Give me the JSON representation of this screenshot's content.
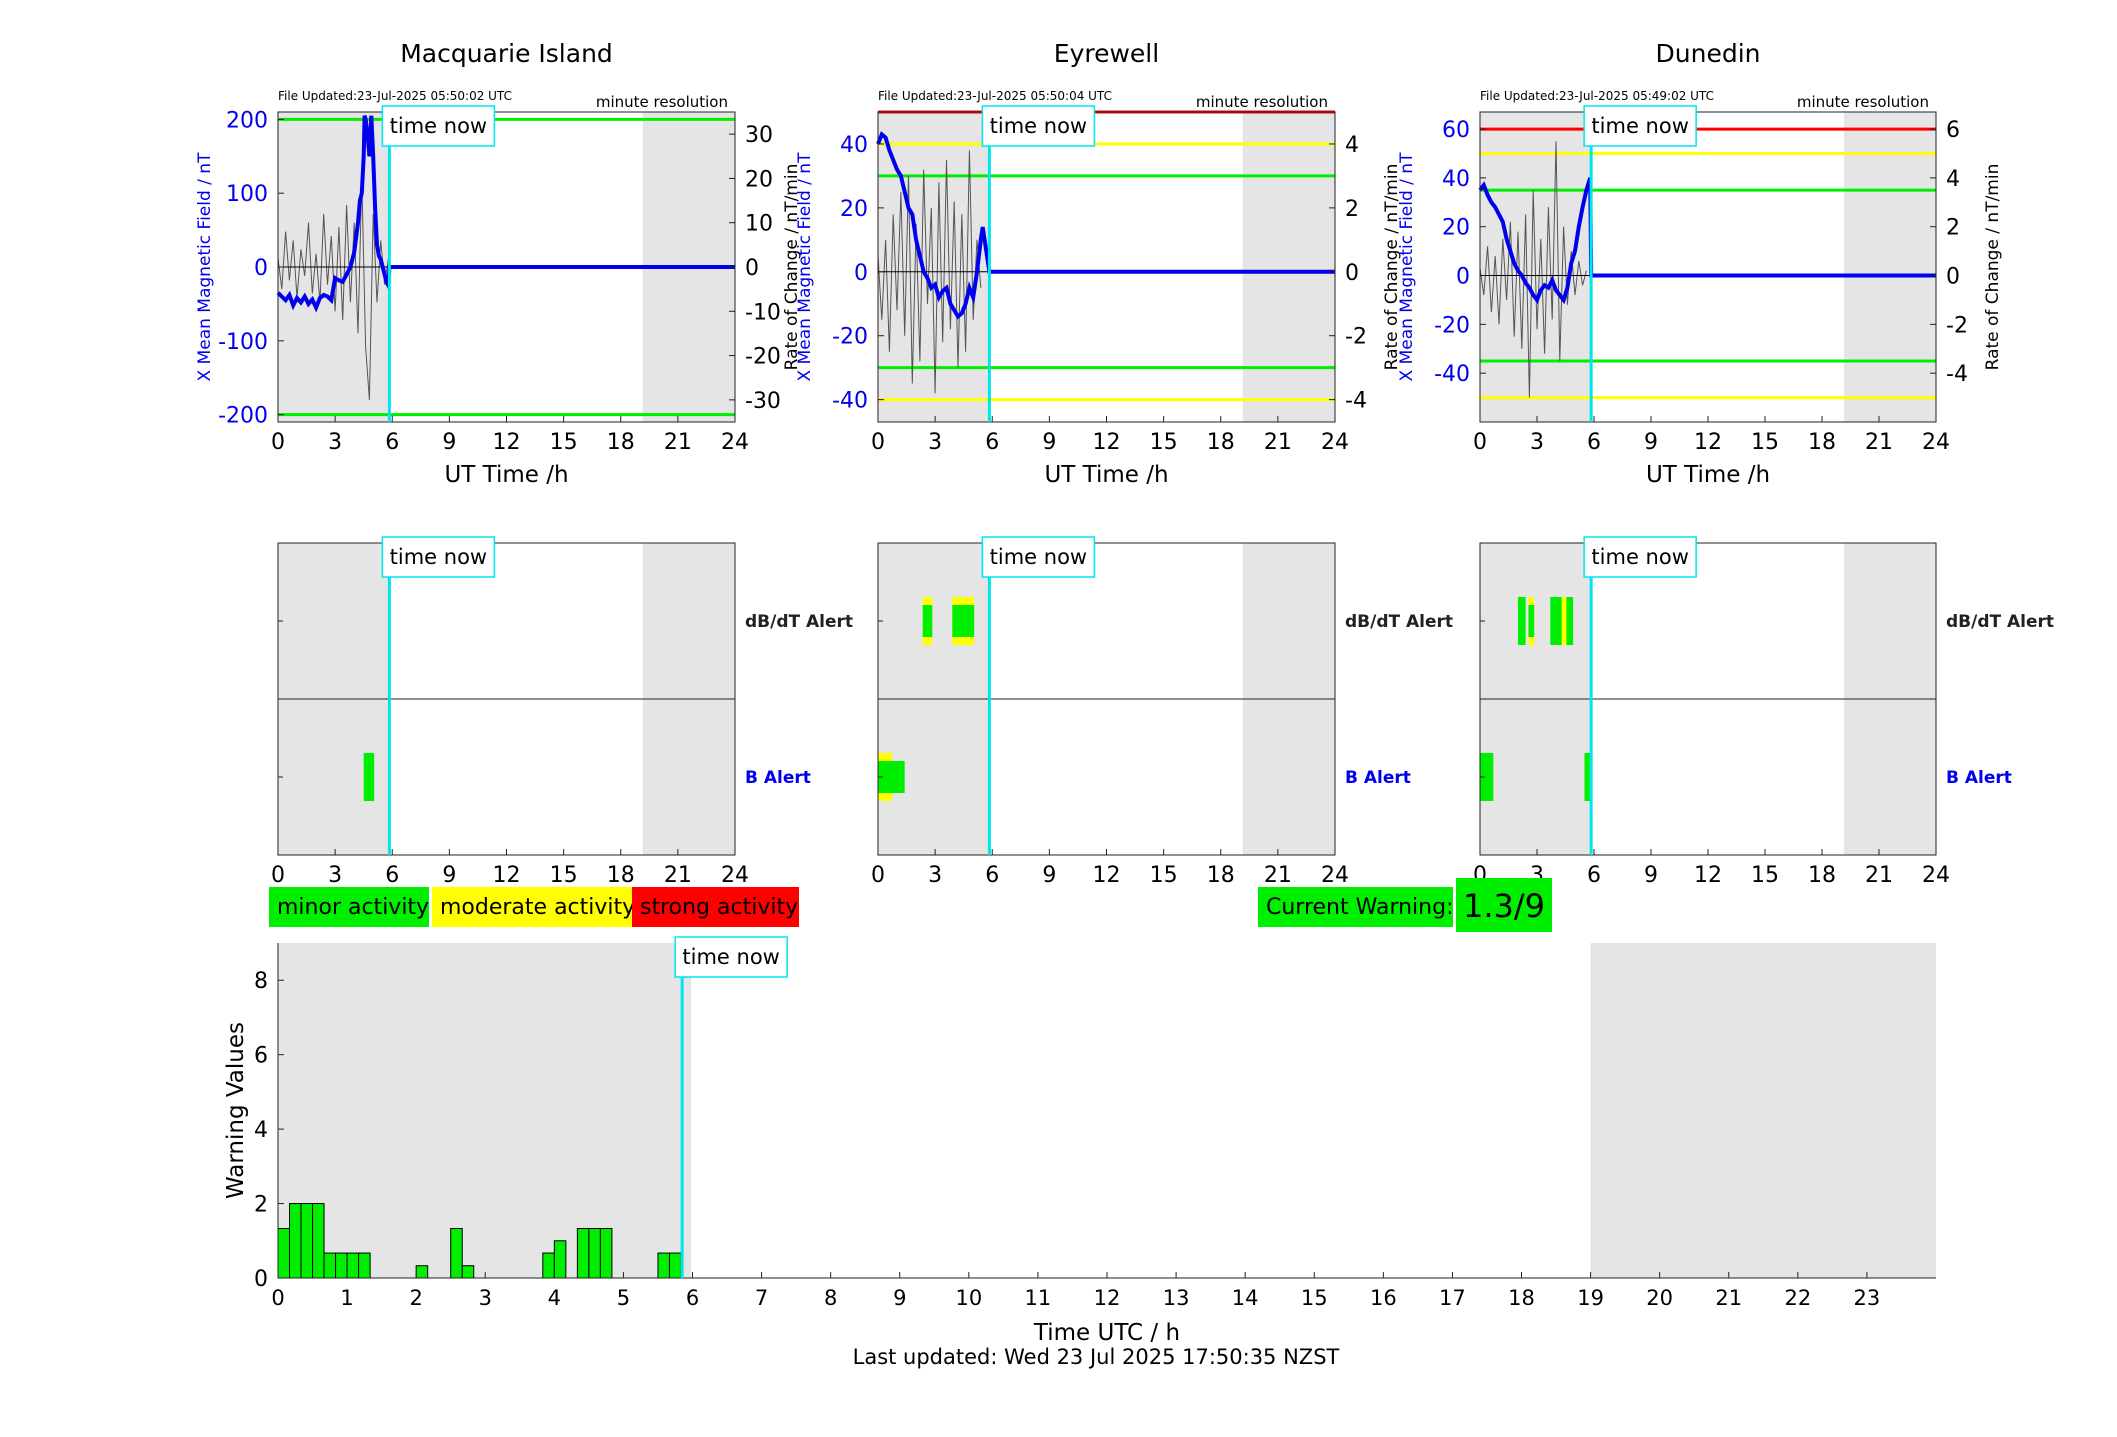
{
  "footer": "Last updated: Wed 23 Jul 2025 17:50:35 NZST",
  "legend": {
    "minor": "minor activity",
    "moderate": "moderate activity",
    "strong": "strong activity",
    "current_warning_label": "Current Warning:",
    "current_warning_value": "1.3/9"
  },
  "colors": {
    "minor": "#00ee00",
    "moderate": "#ffff00",
    "strong": "#ff0000",
    "night_shade": "#e5e5e5",
    "time_now_line": "#00e5ee",
    "field_line": "#0000ee",
    "rate_line": "#555555",
    "teal_box": "#00e5ee"
  },
  "chart_data": [
    {
      "type": "line",
      "station": "Macquarie Island",
      "file_updated": "File Updated:23-Jul-2025 05:50:02 UTC",
      "resolution": "minute resolution",
      "time_now_label": "time now",
      "time_now": 5.85,
      "xlabel": "UT Time /h",
      "ylabel_left": "X Mean Magnetic Field / nT",
      "ylabel_right": "Rate of Change / nT/min",
      "xlim": [
        0,
        24
      ],
      "xticks": [
        0,
        3,
        6,
        9,
        12,
        15,
        18,
        21,
        24
      ],
      "ylim_left": [
        -210,
        210
      ],
      "yticks_left": [
        -200,
        -100,
        0,
        100,
        200
      ],
      "ylim_right": [
        -35,
        35
      ],
      "yticks_right": [
        -30,
        -20,
        -10,
        0,
        10,
        20,
        30
      ],
      "night": [
        [
          0,
          5.85
        ],
        [
          19.15,
          24
        ]
      ],
      "thresholds": [
        {
          "value": 200,
          "level": "minor"
        },
        {
          "value": -200,
          "level": "minor"
        }
      ],
      "field_series": {
        "x": [
          0,
          0.2,
          0.4,
          0.6,
          0.8,
          1.0,
          1.2,
          1.4,
          1.6,
          1.8,
          2.0,
          2.2,
          2.4,
          2.6,
          2.8,
          3.0,
          3.2,
          3.4,
          3.6,
          3.8,
          4.0,
          4.1,
          4.2,
          4.3,
          4.4,
          4.5,
          4.55,
          4.6,
          4.7,
          4.8,
          4.9,
          5.0,
          5.1,
          5.2,
          5.3,
          5.4,
          5.5,
          5.6,
          5.7,
          5.8,
          5.85,
          24
        ],
        "y": [
          -35,
          -40,
          -45,
          -38,
          -52,
          -42,
          -48,
          -40,
          -50,
          -44,
          -55,
          -42,
          -38,
          -40,
          -45,
          -15,
          -18,
          -20,
          -10,
          0,
          20,
          40,
          60,
          90,
          100,
          150,
          205,
          200,
          180,
          150,
          205,
          150,
          80,
          30,
          15,
          10,
          0,
          -10,
          -20,
          -25,
          0,
          0
        ]
      },
      "rate_series": {
        "x": [
          0,
          0.2,
          0.4,
          0.6,
          0.8,
          1.0,
          1.2,
          1.4,
          1.6,
          1.8,
          2.0,
          2.2,
          2.4,
          2.6,
          2.8,
          3.0,
          3.2,
          3.4,
          3.6,
          3.8,
          4.0,
          4.2,
          4.4,
          4.6,
          4.8,
          5.0,
          5.2,
          5.4,
          5.6,
          5.8
        ],
        "y": [
          2,
          -5,
          8,
          -3,
          6,
          -7,
          4,
          -2,
          10,
          -6,
          3,
          -8,
          12,
          -4,
          7,
          -10,
          9,
          -12,
          14,
          -8,
          10,
          -15,
          20,
          -18,
          -30,
          12,
          -8,
          6,
          -4,
          2
        ]
      }
    },
    {
      "type": "line",
      "station": "Eyrewell",
      "file_updated": "File Updated:23-Jul-2025 05:50:04 UTC",
      "resolution": "minute resolution",
      "time_now_label": "time now",
      "time_now": 5.85,
      "xlabel": "UT Time /h",
      "ylabel_left": "X Mean Magnetic Field / nT",
      "ylabel_right": "Rate of Change / nT/min",
      "xlim": [
        0,
        24
      ],
      "xticks": [
        0,
        3,
        6,
        9,
        12,
        15,
        18,
        21,
        24
      ],
      "ylim_left": [
        -47,
        50
      ],
      "yticks_left": [
        -40,
        -20,
        0,
        20,
        40
      ],
      "ylim_right": [
        -4.7,
        5.0
      ],
      "yticks_right": [
        -4,
        -2,
        0,
        2,
        4
      ],
      "night": [
        [
          0,
          5.85
        ],
        [
          19.15,
          24
        ]
      ],
      "thresholds": [
        {
          "value": 50,
          "level": "strong"
        },
        {
          "value": 40,
          "level": "moderate"
        },
        {
          "value": 30,
          "level": "minor"
        },
        {
          "value": -30,
          "level": "minor"
        },
        {
          "value": -40,
          "level": "moderate"
        }
      ],
      "field_series": {
        "x": [
          0,
          0.2,
          0.4,
          0.6,
          0.8,
          1.0,
          1.2,
          1.4,
          1.6,
          1.8,
          2.0,
          2.2,
          2.4,
          2.6,
          2.8,
          3.0,
          3.2,
          3.4,
          3.6,
          3.8,
          4.0,
          4.2,
          4.4,
          4.6,
          4.8,
          5.0,
          5.2,
          5.4,
          5.5,
          5.85,
          24
        ],
        "y": [
          40,
          43,
          42,
          38,
          35,
          32,
          30,
          25,
          20,
          18,
          10,
          5,
          0,
          -2,
          -5,
          -4,
          -8,
          -6,
          -5,
          -10,
          -12,
          -14,
          -13,
          -10,
          -5,
          -8,
          0,
          10,
          14,
          0,
          0
        ]
      },
      "rate_series": {
        "x": [
          0,
          0.2,
          0.4,
          0.6,
          0.8,
          1.0,
          1.2,
          1.4,
          1.6,
          1.8,
          2.0,
          2.2,
          2.4,
          2.6,
          2.8,
          3.0,
          3.2,
          3.4,
          3.6,
          3.8,
          4.0,
          4.2,
          4.4,
          4.6,
          4.8,
          5.0,
          5.2,
          5.4
        ],
        "y": [
          0.5,
          -1.5,
          1.0,
          -2.5,
          1.8,
          -1.2,
          2.5,
          -2.0,
          3.0,
          -3.5,
          1.5,
          -2.8,
          3.2,
          -1.0,
          2.0,
          -3.8,
          2.8,
          -2.2,
          3.5,
          -1.8,
          2.2,
          -3.0,
          1.8,
          -2.5,
          3.8,
          -1.5,
          1.0,
          -0.5
        ]
      }
    },
    {
      "type": "line",
      "station": "Dunedin",
      "file_updated": "File Updated:23-Jul-2025 05:49:02 UTC",
      "resolution": "minute resolution",
      "time_now_label": "time now",
      "time_now": 5.85,
      "xlabel": "UT Time /h",
      "ylabel_left": "X Mean Magnetic Field / nT",
      "ylabel_right": "Rate of Change / nT/min",
      "xlim": [
        0,
        24
      ],
      "xticks": [
        0,
        3,
        6,
        9,
        12,
        15,
        18,
        21,
        24
      ],
      "ylim_left": [
        -60,
        67
      ],
      "yticks_left": [
        -40,
        -20,
        0,
        20,
        40,
        60
      ],
      "ylim_right": [
        -6.0,
        6.7
      ],
      "yticks_right": [
        -4,
        -2,
        0,
        2,
        4,
        6
      ],
      "night": [
        [
          0,
          5.85
        ],
        [
          19.15,
          24
        ]
      ],
      "thresholds": [
        {
          "value": 60,
          "level": "strong"
        },
        {
          "value": 50,
          "level": "moderate"
        },
        {
          "value": 35,
          "level": "minor"
        },
        {
          "value": -35,
          "level": "minor"
        },
        {
          "value": -50,
          "level": "moderate"
        }
      ],
      "field_series": {
        "x": [
          0,
          0.2,
          0.4,
          0.6,
          0.8,
          1.0,
          1.2,
          1.4,
          1.6,
          1.8,
          2.0,
          2.2,
          2.4,
          2.6,
          2.8,
          3.0,
          3.2,
          3.4,
          3.6,
          3.8,
          4.0,
          4.2,
          4.4,
          4.6,
          4.8,
          5.0,
          5.2,
          5.4,
          5.6,
          5.8,
          5.85,
          24
        ],
        "y": [
          35,
          37,
          33,
          30,
          28,
          25,
          22,
          15,
          10,
          5,
          2,
          0,
          -3,
          -5,
          -8,
          -10,
          -6,
          -4,
          -5,
          -2,
          -6,
          -8,
          -10,
          -5,
          5,
          10,
          20,
          28,
          35,
          40,
          0,
          0
        ]
      },
      "rate_series": {
        "x": [
          0,
          0.2,
          0.4,
          0.6,
          0.8,
          1.0,
          1.2,
          1.4,
          1.6,
          1.8,
          2.0,
          2.2,
          2.4,
          2.6,
          2.8,
          3.0,
          3.2,
          3.4,
          3.6,
          3.8,
          4.0,
          4.2,
          4.4,
          4.6,
          4.8,
          5.0,
          5.2,
          5.4,
          5.6
        ],
        "y": [
          0.3,
          -0.8,
          1.2,
          -1.5,
          0.8,
          -2.0,
          1.5,
          -1.0,
          2.2,
          -2.5,
          1.8,
          -3.0,
          2.5,
          -5.0,
          3.5,
          -2.2,
          1.5,
          -3.2,
          2.8,
          -1.8,
          5.5,
          -3.5,
          2.0,
          -1.2,
          1.0,
          -0.8,
          0.6,
          -0.4,
          0.2
        ]
      }
    },
    {
      "type": "event",
      "station": "Macquarie Island",
      "time_now_label": "time now",
      "time_now": 5.85,
      "xlim": [
        0,
        24
      ],
      "xticks": [
        0,
        3,
        6,
        9,
        12,
        15,
        18,
        21,
        24
      ],
      "rows": [
        {
          "label": "dB/dT Alert",
          "label_color": "#222222",
          "events": []
        },
        {
          "label": "B Alert",
          "label_color": "#0000ee",
          "events": [
            {
              "start": 4.5,
              "end": 5.05,
              "level": "minor"
            }
          ]
        }
      ],
      "night": [
        [
          0,
          5.85
        ],
        [
          19.15,
          24
        ]
      ]
    },
    {
      "type": "event",
      "station": "Eyrewell",
      "time_now_label": "time now",
      "time_now": 5.85,
      "xlim": [
        0,
        24
      ],
      "xticks": [
        0,
        3,
        6,
        9,
        12,
        15,
        18,
        21,
        24
      ],
      "rows": [
        {
          "label": "dB/dT Alert",
          "label_color": "#222222",
          "events": [
            {
              "start": 2.35,
              "end": 2.85,
              "level": "moderate"
            },
            {
              "start": 2.35,
              "end": 2.85,
              "level": "minor",
              "inner": true
            },
            {
              "start": 3.9,
              "end": 5.05,
              "level": "moderate"
            },
            {
              "start": 3.9,
              "end": 5.05,
              "level": "minor",
              "inner": true
            }
          ]
        },
        {
          "label": "B Alert",
          "label_color": "#0000ee",
          "events": [
            {
              "start": 0.0,
              "end": 0.75,
              "level": "moderate"
            },
            {
              "start": 0.0,
              "end": 1.4,
              "level": "minor",
              "inner": true
            }
          ]
        }
      ],
      "night": [
        [
          0,
          5.85
        ],
        [
          19.15,
          24
        ]
      ]
    },
    {
      "type": "event",
      "station": "Dunedin",
      "time_now_label": "time now",
      "time_now": 5.85,
      "xlim": [
        0,
        24
      ],
      "xticks": [
        0,
        3,
        6,
        9,
        12,
        15,
        18,
        21,
        24
      ],
      "rows": [
        {
          "label": "dB/dT Alert",
          "label_color": "#222222",
          "events": [
            {
              "start": 2.0,
              "end": 2.4,
              "level": "minor"
            },
            {
              "start": 2.55,
              "end": 2.85,
              "level": "moderate"
            },
            {
              "start": 2.55,
              "end": 2.85,
              "level": "minor",
              "inner": true
            },
            {
              "start": 3.7,
              "end": 4.9,
              "level": "minor"
            },
            {
              "start": 4.3,
              "end": 4.55,
              "level": "moderate"
            }
          ]
        },
        {
          "label": "B Alert",
          "label_color": "#0000ee",
          "events": [
            {
              "start": 0.0,
              "end": 0.7,
              "level": "minor"
            },
            {
              "start": 5.5,
              "end": 5.9,
              "level": "minor"
            }
          ]
        }
      ],
      "night": [
        [
          0,
          5.85
        ],
        [
          19.15,
          24
        ]
      ]
    },
    {
      "type": "bar",
      "time_now_label": "time now",
      "time_now": 5.85,
      "xlabel": "Time UTC / h",
      "ylabel": "Warning Values",
      "xlim": [
        0,
        24
      ],
      "ylim": [
        0,
        9
      ],
      "xticks": [
        0,
        1,
        2,
        3,
        4,
        5,
        6,
        7,
        8,
        9,
        10,
        11,
        12,
        13,
        14,
        15,
        16,
        17,
        18,
        19,
        20,
        21,
        22,
        23
      ],
      "yticks": [
        0,
        2,
        4,
        6,
        8
      ],
      "bar_width": 0.1667,
      "night": [
        [
          0,
          5.98
        ],
        [
          19,
          24
        ]
      ],
      "bars": [
        {
          "t": 0.0,
          "v": 1.33
        },
        {
          "t": 0.1667,
          "v": 2.0
        },
        {
          "t": 0.3333,
          "v": 2.0
        },
        {
          "t": 0.5,
          "v": 2.0
        },
        {
          "t": 0.6667,
          "v": 0.67
        },
        {
          "t": 0.8333,
          "v": 0.67
        },
        {
          "t": 1.0,
          "v": 0.67
        },
        {
          "t": 1.1667,
          "v": 0.67
        },
        {
          "t": 2.0,
          "v": 0.33
        },
        {
          "t": 2.5,
          "v": 1.33
        },
        {
          "t": 2.6667,
          "v": 0.33
        },
        {
          "t": 3.8333,
          "v": 0.67
        },
        {
          "t": 4.0,
          "v": 1.0
        },
        {
          "t": 4.3333,
          "v": 1.33
        },
        {
          "t": 4.5,
          "v": 1.33
        },
        {
          "t": 4.6667,
          "v": 1.33
        },
        {
          "t": 5.5,
          "v": 0.67
        },
        {
          "t": 5.6667,
          "v": 0.67
        }
      ]
    }
  ]
}
